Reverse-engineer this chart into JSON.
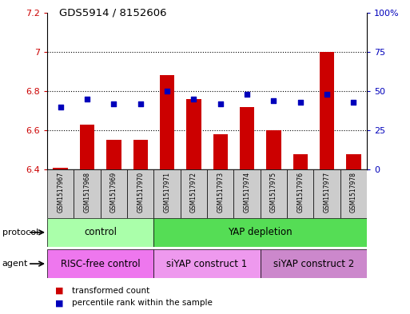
{
  "title": "GDS5914 / 8152606",
  "samples": [
    "GSM1517967",
    "GSM1517968",
    "GSM1517969",
    "GSM1517970",
    "GSM1517971",
    "GSM1517972",
    "GSM1517973",
    "GSM1517974",
    "GSM1517975",
    "GSM1517976",
    "GSM1517977",
    "GSM1517978"
  ],
  "transformed_counts": [
    6.41,
    6.63,
    6.55,
    6.55,
    6.88,
    6.76,
    6.58,
    6.72,
    6.6,
    6.48,
    7.0,
    6.48
  ],
  "percentile_ranks": [
    40,
    45,
    42,
    42,
    50,
    45,
    42,
    48,
    44,
    43,
    48,
    43
  ],
  "ylim_left": [
    6.4,
    7.2
  ],
  "ylim_right": [
    0,
    100
  ],
  "yticks_left": [
    6.4,
    6.6,
    6.8,
    7.0,
    7.2
  ],
  "yticks_right": [
    0,
    25,
    50,
    75,
    100
  ],
  "ytick_labels_left": [
    "6.4",
    "6.6",
    "6.8",
    "7",
    "7.2"
  ],
  "ytick_labels_right": [
    "0",
    "25",
    "50",
    "75",
    "100%"
  ],
  "bar_color": "#cc0000",
  "scatter_color": "#0000bb",
  "protocol_groups": [
    {
      "label": "control",
      "start": 0,
      "end": 3,
      "color": "#aaffaa"
    },
    {
      "label": "YAP depletion",
      "start": 4,
      "end": 11,
      "color": "#55dd55"
    }
  ],
  "agent_groups": [
    {
      "label": "RISC-free control",
      "start": 0,
      "end": 3,
      "color": "#ee77ee"
    },
    {
      "label": "siYAP construct 1",
      "start": 4,
      "end": 7,
      "color": "#ee99ee"
    },
    {
      "label": "siYAP construct 2",
      "start": 8,
      "end": 11,
      "color": "#cc88cc"
    }
  ],
  "protocol_label": "protocol",
  "agent_label": "agent",
  "legend_bar_label": "transformed count",
  "legend_scatter_label": "percentile rank within the sample",
  "tick_area_color": "#cccccc"
}
